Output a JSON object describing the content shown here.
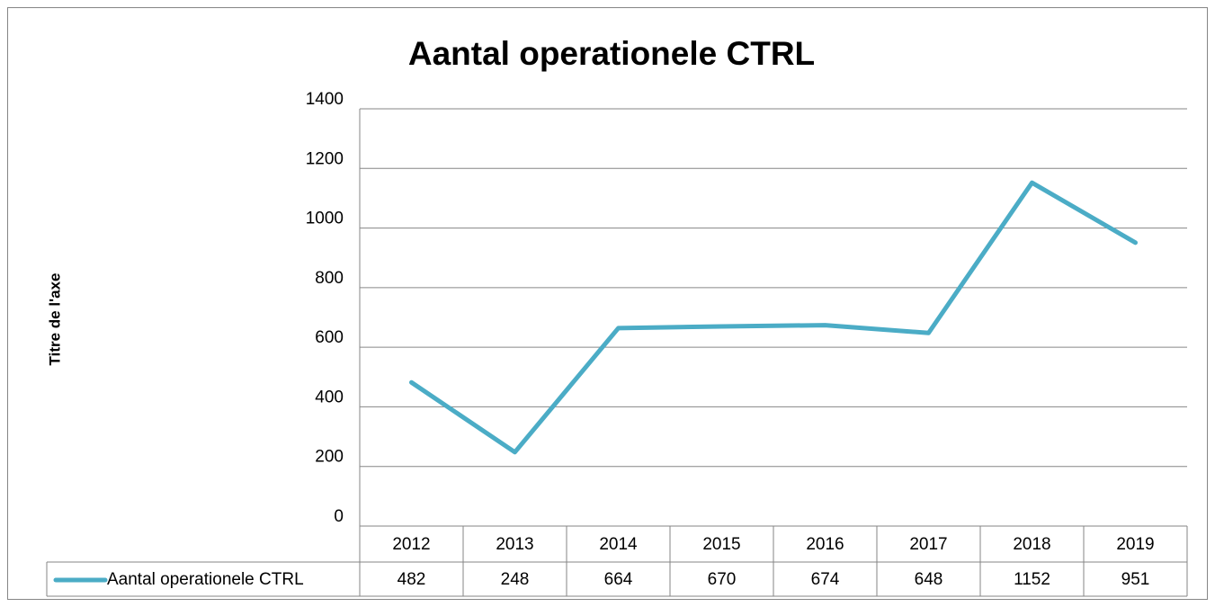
{
  "chart_data": {
    "type": "line",
    "title": "Aantal operationele CTRL",
    "y_axis_label": "Titre de l'axe",
    "categories": [
      "2012",
      "2013",
      "2014",
      "2015",
      "2016",
      "2017",
      "2018",
      "2019"
    ],
    "series": [
      {
        "name": "Aantal operationele CTRL",
        "color": "#4bacc6",
        "values": [
          482,
          248,
          664,
          670,
          674,
          648,
          1152,
          951
        ]
      }
    ],
    "ylim": [
      0,
      1400
    ],
    "yticks": [
      0,
      200,
      400,
      600,
      800,
      1000,
      1200,
      1400
    ],
    "grid": true,
    "data_table": true
  }
}
